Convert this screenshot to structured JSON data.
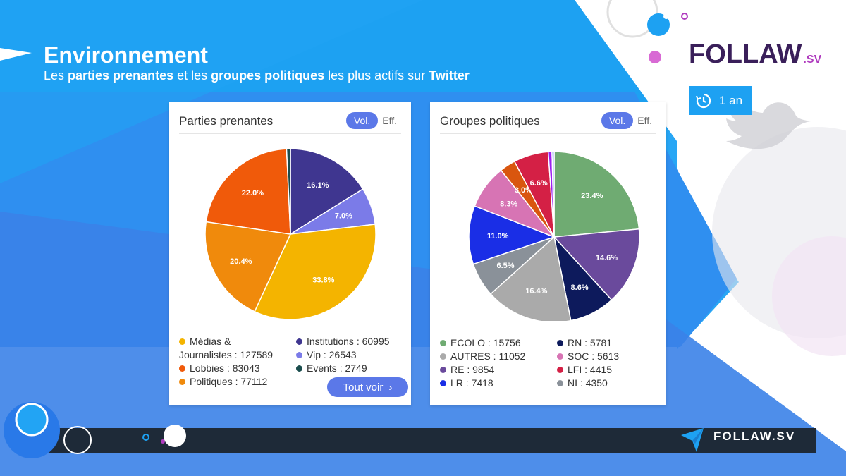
{
  "header": {
    "title": "Environnement",
    "subtitle_parts": [
      "Les ",
      "parties prenantes",
      " et les ",
      "groupes politiques",
      " les plus actifs sur ",
      "Twitter"
    ]
  },
  "logo": {
    "text": "FOLLAW",
    "suffix": ".SV"
  },
  "period_button": {
    "label": "1 an"
  },
  "footer": {
    "brand": "FOLLAW.SV"
  },
  "colors": {
    "primary_blue": "#1da1f2",
    "button_blue": "#5b78e8",
    "dark_bar": "#1e2a38"
  },
  "cards": [
    {
      "title": "Parties prenantes",
      "toggle_on": "Vol.",
      "toggle_off": "Eff.",
      "legend": [
        {
          "label": "Médias &",
          "label2": "Journalistes : 127589",
          "color": "#f4b400"
        },
        {
          "label": "Lobbies : 83043",
          "color": "#f05a0a"
        },
        {
          "label": "Politiques : 77112",
          "color": "#f08a0c"
        },
        {
          "label": "Institutions : 60995",
          "color": "#3f3690"
        },
        {
          "label": "Vip : 26543",
          "color": "#7b7be8"
        },
        {
          "label": "Events : 2749",
          "color": "#1a4d4d"
        }
      ],
      "button": "Tout voir"
    },
    {
      "title": "Groupes politiques",
      "toggle_on": "Vol.",
      "toggle_off": "Eff.",
      "legend": [
        {
          "label": "ECOLO : 15756",
          "color": "#6fab72"
        },
        {
          "label": "AUTRES : 11052",
          "color": "#aaaaaa"
        },
        {
          "label": "RE : 9854",
          "color": "#6a4a9c"
        },
        {
          "label": "LR : 7418",
          "color": "#1a2ee6"
        },
        {
          "label": "RN : 5781",
          "color": "#0d1a5c"
        },
        {
          "label": "SOC : 5613",
          "color": "#d774b4"
        },
        {
          "label": "LFI : 4415",
          "color": "#d42045"
        },
        {
          "label": "NI : 4350",
          "color": "#8a9199"
        }
      ]
    }
  ],
  "chart_data": [
    {
      "type": "pie",
      "title": "Parties prenantes",
      "slices": [
        {
          "name": "Institutions",
          "value": 60995,
          "label": "16.1%",
          "color": "#3f3690"
        },
        {
          "name": "Vip",
          "value": 26543,
          "label": "7.0%",
          "color": "#7b7be8"
        },
        {
          "name": "Médias & Journalistes",
          "value": 127589,
          "label": "33.8%",
          "color": "#f4b400"
        },
        {
          "name": "Politiques",
          "value": 77112,
          "label": "20.4%",
          "color": "#f08a0c"
        },
        {
          "name": "Lobbies",
          "value": 83043,
          "label": "22.0%",
          "color": "#f05a0a"
        },
        {
          "name": "Events",
          "value": 2749,
          "label": "",
          "color": "#1a4d4d"
        }
      ]
    },
    {
      "type": "pie",
      "title": "Groupes politiques",
      "slices": [
        {
          "name": "ECOLO",
          "value": 15756,
          "label": "23.4%",
          "color": "#6fab72"
        },
        {
          "name": "RE",
          "value": 9854,
          "label": "14.6%",
          "color": "#6a4a9c"
        },
        {
          "name": "RN",
          "value": 5781,
          "label": "8.6%",
          "color": "#0d1a5c"
        },
        {
          "name": "AUTRES",
          "value": 11052,
          "label": "16.4%",
          "color": "#aaaaaa"
        },
        {
          "name": "NI",
          "value": 4350,
          "label": "6.5%",
          "color": "#8a9199"
        },
        {
          "name": "LR",
          "value": 7418,
          "label": "11.0%",
          "color": "#1a2ee6"
        },
        {
          "name": "SOC",
          "value": 5613,
          "label": "8.3%",
          "color": "#d774b4"
        },
        {
          "name": "Autre (orange)",
          "value": 2020,
          "label": "3.0%",
          "color": "#d9560f"
        },
        {
          "name": "LFI",
          "value": 4415,
          "label": "6.6%",
          "color": "#d42045"
        },
        {
          "name": "Autre (violet)",
          "value": 470,
          "label": "",
          "color": "#9b1ef0"
        },
        {
          "name": "Autre (bleu)",
          "value": 270,
          "label": "",
          "color": "#3a6fe8"
        }
      ]
    }
  ]
}
